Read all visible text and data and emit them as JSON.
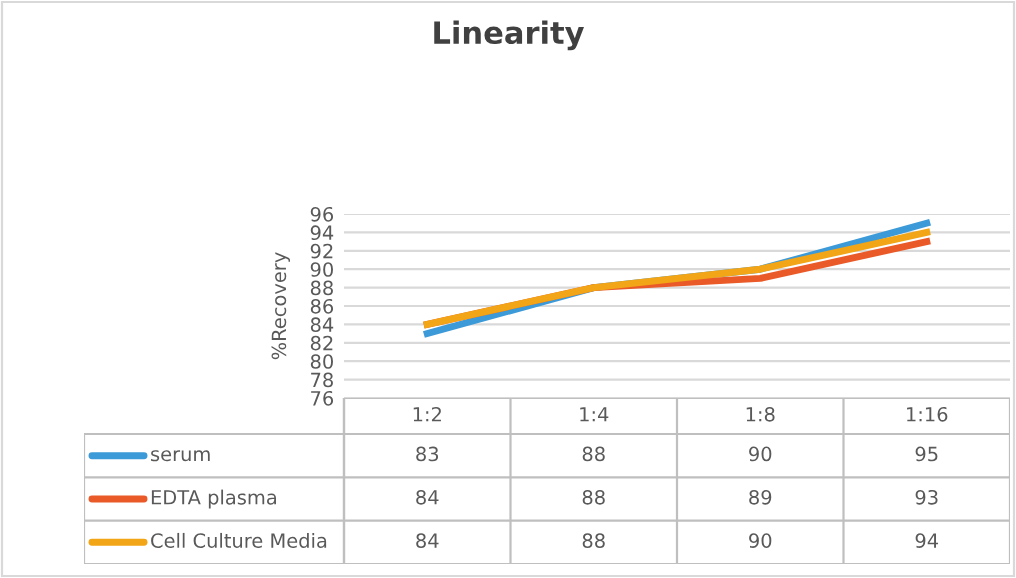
{
  "chart_data": {
    "type": "line",
    "title": "Linearity",
    "ylabel": "%Recovery",
    "categories": [
      "1:2",
      "1:4",
      "1:8",
      "1:16"
    ],
    "series": [
      {
        "name": "serum",
        "color": "#3d9ad8",
        "values": [
          83,
          88,
          90,
          95
        ]
      },
      {
        "name": "EDTA plasma",
        "color": "#ea5a28",
        "values": [
          84,
          88,
          89,
          93
        ]
      },
      {
        "name": "Cell Culture Media",
        "color": "#f2a516",
        "values": [
          84,
          88,
          90,
          94
        ]
      }
    ],
    "ylim": [
      76,
      96
    ],
    "yticks": [
      76,
      78,
      80,
      82,
      84,
      86,
      88,
      90,
      92,
      94,
      96
    ],
    "grid": "y",
    "data_labels": true,
    "legend": "bottom",
    "tick_labels": "y",
    "marker": "none",
    "line_style": "solid"
  }
}
